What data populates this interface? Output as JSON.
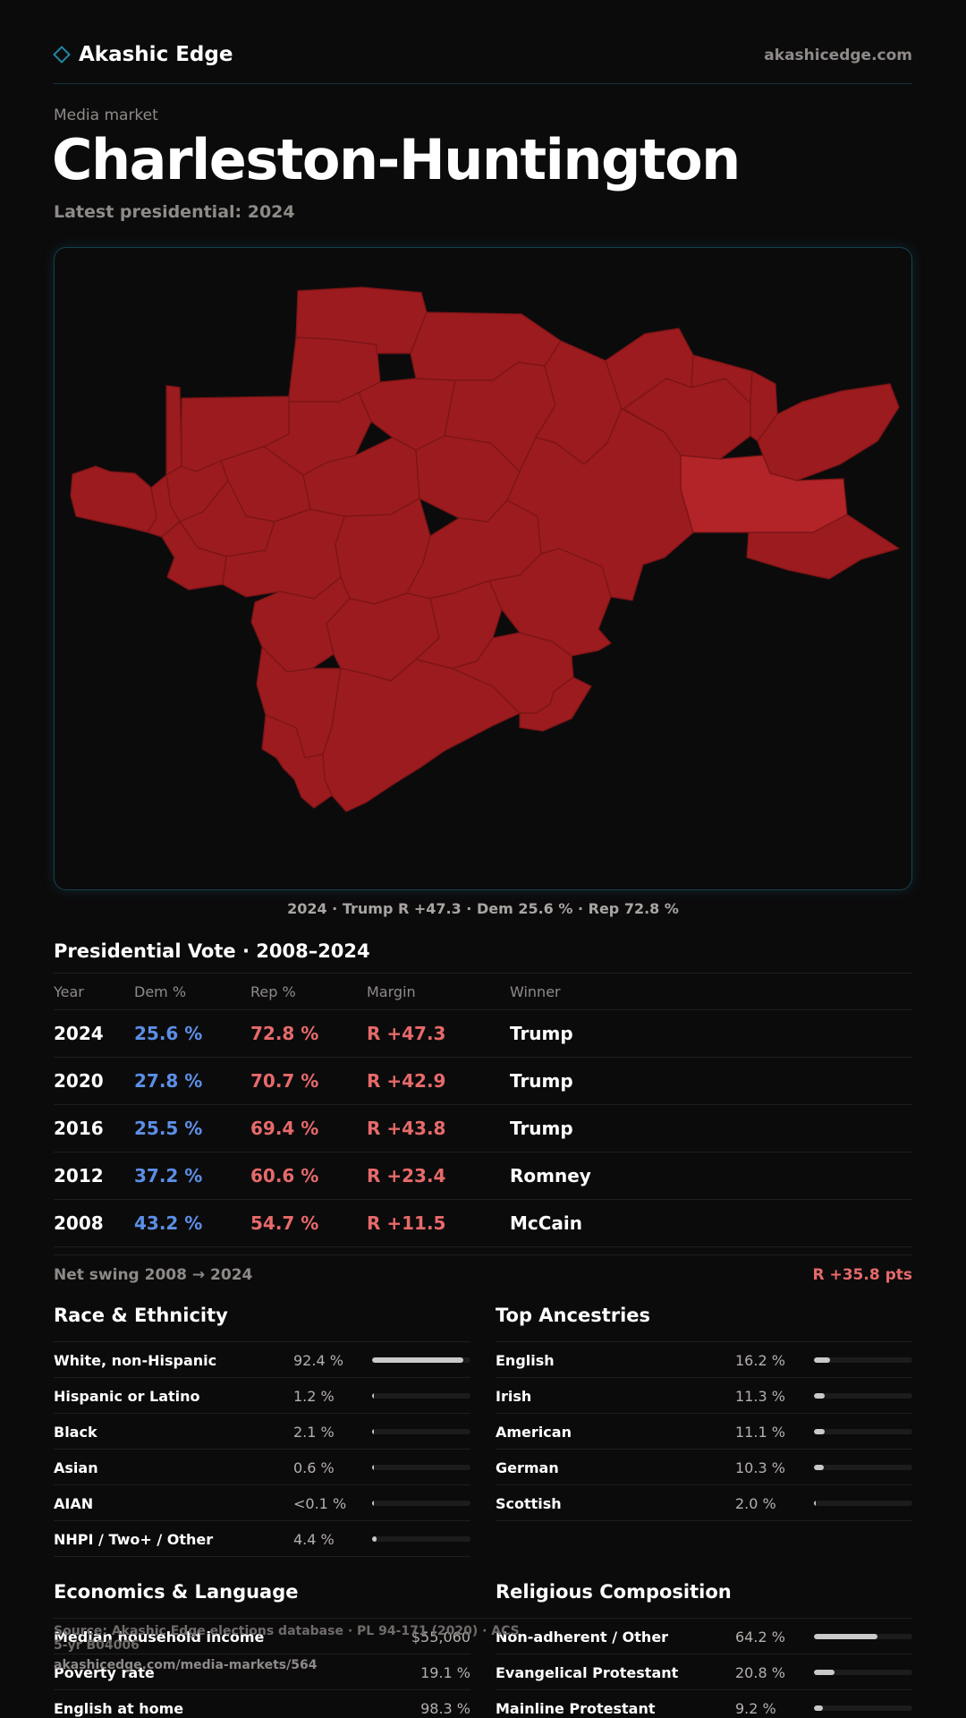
{
  "header": {
    "brand": "Akashic Edge",
    "site": "akashicedge.com"
  },
  "eyebrow": "Media market",
  "title": "Charleston-Huntington",
  "subtitle": "Latest presidential: 2024",
  "map": {
    "caption": "2024 · Trump R +47.3 · Dem 25.6 % · Rep 72.8 %",
    "colors": {
      "solid_r": "#9b1b1e",
      "lighter_r": "#b22428",
      "border": "#7a1416"
    }
  },
  "vote": {
    "title": "Presidential Vote · 2008–2024",
    "headers": {
      "year": "Year",
      "dem": "Dem %",
      "rep": "Rep %",
      "margin": "Margin",
      "winner": "Winner"
    },
    "rows": [
      {
        "year": "2024",
        "dem": "25.6 %",
        "rep": "72.8 %",
        "margin": "R +47.3",
        "winner": "Trump"
      },
      {
        "year": "2020",
        "dem": "27.8 %",
        "rep": "70.7 %",
        "margin": "R +42.9",
        "winner": "Trump"
      },
      {
        "year": "2016",
        "dem": "25.5 %",
        "rep": "69.4 %",
        "margin": "R +43.8",
        "winner": "Trump"
      },
      {
        "year": "2012",
        "dem": "37.2 %",
        "rep": "60.6 %",
        "margin": "R +23.4",
        "winner": "Romney"
      },
      {
        "year": "2008",
        "dem": "43.2 %",
        "rep": "54.7 %",
        "margin": "R +11.5",
        "winner": "McCain"
      }
    ],
    "net_swing_label": "Net swing 2008 → 2024",
    "net_swing_value": "R +35.8 pts"
  },
  "race": {
    "title": "Race & Ethnicity",
    "rows": [
      {
        "label": "White, non-Hispanic",
        "value": "92.4 %",
        "pct": 92.4
      },
      {
        "label": "Hispanic or Latino",
        "value": "1.2 %",
        "pct": 1.2
      },
      {
        "label": "Black",
        "value": "2.1 %",
        "pct": 2.1
      },
      {
        "label": "Asian",
        "value": "0.6 %",
        "pct": 0.6
      },
      {
        "label": "AIAN",
        "value": "<0.1 %",
        "pct": 0
      },
      {
        "label": "NHPI / Two+ / Other",
        "value": "4.4 %",
        "pct": 4.4
      }
    ]
  },
  "ancestry": {
    "title": "Top Ancestries",
    "rows": [
      {
        "label": "English",
        "value": "16.2 %",
        "pct": 16.2
      },
      {
        "label": "Irish",
        "value": "11.3 %",
        "pct": 11.3
      },
      {
        "label": "American",
        "value": "11.1 %",
        "pct": 11.1
      },
      {
        "label": "German",
        "value": "10.3 %",
        "pct": 10.3
      },
      {
        "label": "Scottish",
        "value": "2.0 %",
        "pct": 2.0
      }
    ]
  },
  "economics": {
    "title": "Economics & Language",
    "rows": [
      {
        "label": "Median household income",
        "value": "$55,060"
      },
      {
        "label": "Poverty rate",
        "value": "19.1 %"
      },
      {
        "label": "English at home",
        "value": "98.3 %"
      }
    ]
  },
  "religion": {
    "title": "Religious Composition",
    "rows": [
      {
        "label": "Non-adherent / Other",
        "value": "64.2 %",
        "pct": 64.2
      },
      {
        "label": "Evangelical Protestant",
        "value": "20.8 %",
        "pct": 20.8
      },
      {
        "label": "Mainline Protestant",
        "value": "9.2 %",
        "pct": 9.2
      }
    ]
  },
  "footer": {
    "source": "Source: Akashic Edge elections database · PL 94-171 (2020) · ACS 5-yr B04006",
    "url": "akashicedge.com/media-markets/564"
  }
}
